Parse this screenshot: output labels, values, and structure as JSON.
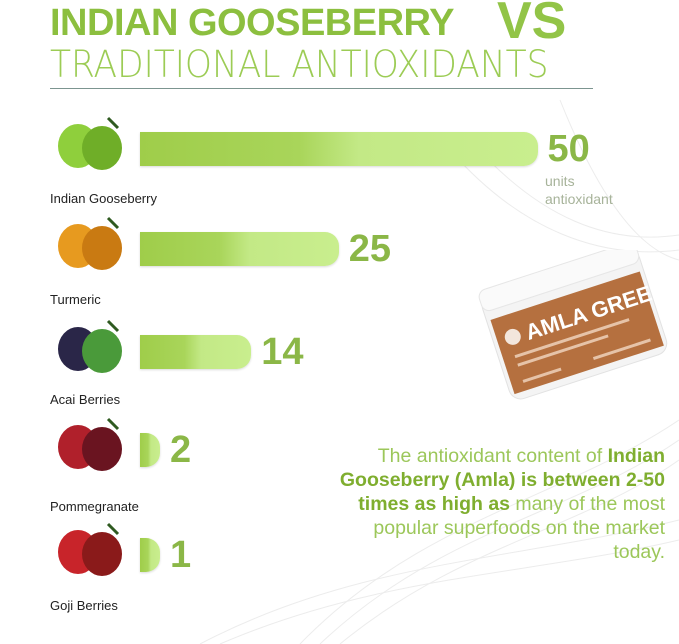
{
  "title": {
    "line1": "INDIAN GOOSEBERRY",
    "vs": "VS",
    "line2": "TRADITIONAL ANTIOXIDANTS"
  },
  "chart_data": {
    "type": "bar",
    "orientation": "horizontal",
    "categories": [
      "Indian Gooseberry",
      "Turmeric",
      "Acai Berries",
      "Pommegranate",
      "Goji Berries"
    ],
    "values": [
      50,
      25,
      14,
      2,
      1
    ],
    "value_labels": [
      "50",
      "25",
      "14",
      "2",
      "1"
    ],
    "unit_label": "units antioxidant",
    "bar_color": "#a9d55a",
    "value_color": "#8bb747"
  },
  "units": {
    "line1": "units",
    "line2": "antioxidant"
  },
  "product": {
    "name": "AMLA GREEN",
    "label_color": "#b5703f"
  },
  "description": {
    "part1": "The antioxidant content of ",
    "bold1": "Indian Gooseberry (Amla) is between 2-50 times as high as",
    "part2": " many of the most popular superfoods on the market today."
  }
}
